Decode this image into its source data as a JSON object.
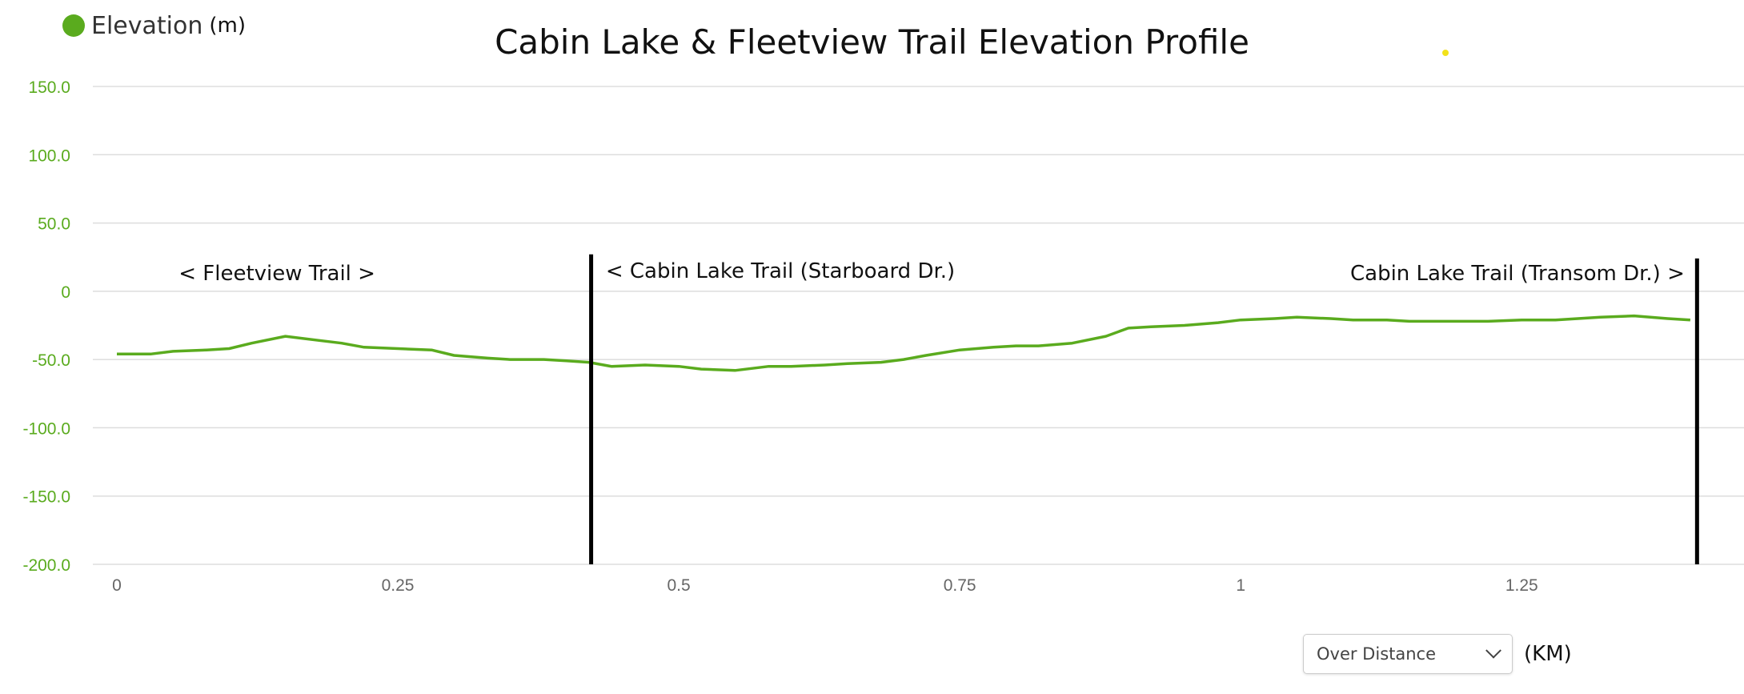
{
  "legend": {
    "label": "Elevation",
    "unit": "(m)"
  },
  "controls": {
    "mode": "Over Distance",
    "unit": "(KM)"
  },
  "colors": {
    "line": "#5aab1e",
    "ytick": "#5aab1e",
    "grid": "#dddddd",
    "marker": "#000000",
    "dot": "#f2e21a"
  },
  "chart_data": {
    "type": "line",
    "title": "Cabin Lake & Fleetview Trail Elevation Profile",
    "xlabel": "",
    "ylabel": "",
    "xlim": [
      0,
      1.42
    ],
    "ylim": [
      -200,
      150
    ],
    "xticks": [
      0,
      0.25,
      0.5,
      0.75,
      1,
      1.25
    ],
    "xtick_labels": [
      "0",
      "0.25",
      "0.5",
      "0.75",
      "1",
      "1.25"
    ],
    "yticks": [
      150,
      100,
      50,
      0,
      -50,
      -100,
      -150,
      -200
    ],
    "ytick_labels": [
      "150.0",
      "100.0",
      "50.0",
      "0",
      "-50.0",
      "-100.0",
      "-150.0",
      "-200.0"
    ],
    "grid": true,
    "legend": "top-left",
    "series": [
      {
        "name": "Elevation",
        "x": [
          0,
          0.03,
          0.05,
          0.08,
          0.1,
          0.12,
          0.15,
          0.18,
          0.2,
          0.22,
          0.25,
          0.28,
          0.3,
          0.33,
          0.35,
          0.38,
          0.4,
          0.42,
          0.44,
          0.47,
          0.5,
          0.52,
          0.55,
          0.58,
          0.6,
          0.63,
          0.65,
          0.68,
          0.7,
          0.72,
          0.75,
          0.78,
          0.8,
          0.82,
          0.85,
          0.88,
          0.9,
          0.92,
          0.95,
          0.98,
          1.0,
          1.03,
          1.05,
          1.08,
          1.1,
          1.13,
          1.15,
          1.18,
          1.2,
          1.22,
          1.25,
          1.28,
          1.3,
          1.32,
          1.35,
          1.38,
          1.4
        ],
        "y": [
          -46,
          -46,
          -44,
          -43,
          -42,
          -38,
          -33,
          -36,
          -38,
          -41,
          -42,
          -43,
          -47,
          -49,
          -50,
          -50,
          -51,
          -52,
          -55,
          -54,
          -55,
          -57,
          -58,
          -55,
          -55,
          -54,
          -53,
          -52,
          -50,
          -47,
          -43,
          -41,
          -40,
          -40,
          -38,
          -33,
          -27,
          -26,
          -25,
          -23,
          -21,
          -20,
          -19,
          -20,
          -21,
          -21,
          -22,
          -22,
          -22,
          -22,
          -21,
          -21,
          -20,
          -19,
          -18,
          -20,
          -21
        ]
      }
    ],
    "annotations": [
      {
        "text": "< Fleetview Trail >",
        "x": 0.055,
        "y": 8
      },
      {
        "text": "< Cabin Lake Trail (Starboard Dr.)",
        "x": 0.435,
        "y": 10
      },
      {
        "text": "Cabin Lake Trail (Transom Dr.) >",
        "x": 1.395,
        "y": 8,
        "anchor": "end"
      }
    ],
    "markers": [
      {
        "x": 0.422,
        "y_top": 27,
        "y_bottom": -200
      },
      {
        "x": 1.406,
        "y_top": 24,
        "y_bottom": -200
      }
    ]
  }
}
